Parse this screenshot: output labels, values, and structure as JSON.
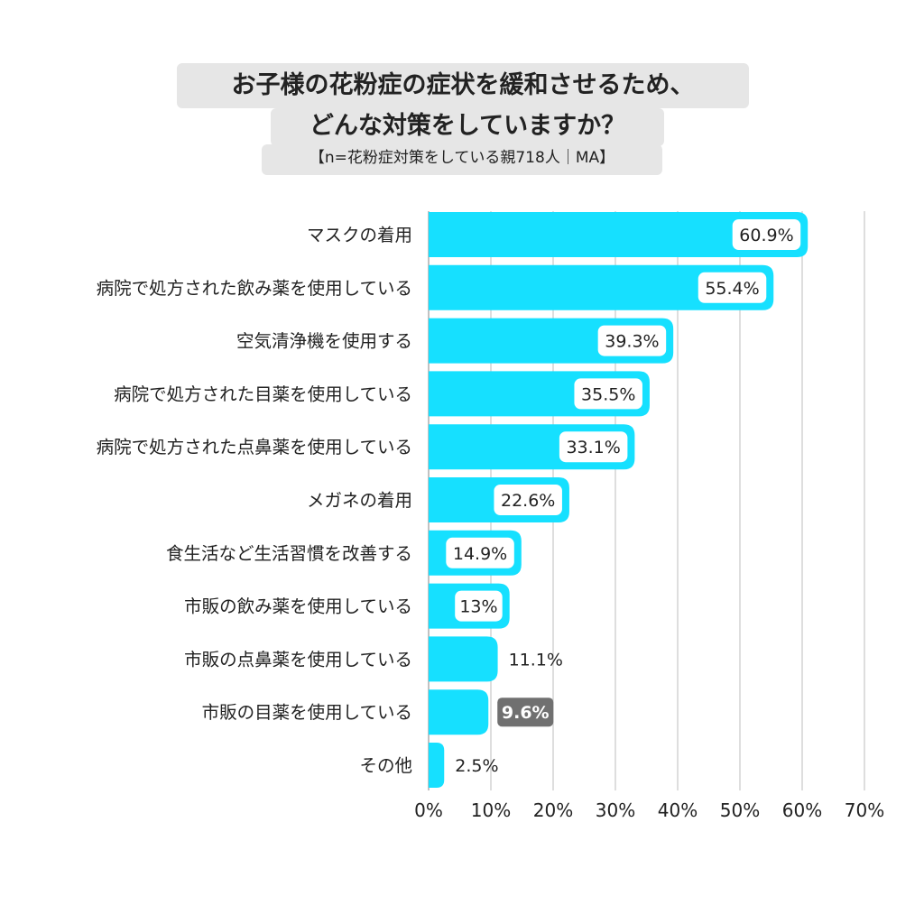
{
  "title": {
    "line1": "お子様の花粉症の症状を緩和させるため、",
    "line2": "どんな対策をしていますか？",
    "subtitle": "【n=花粉症対策をしている親718人｜MA】"
  },
  "chart_data": {
    "type": "bar",
    "orientation": "horizontal",
    "categories": [
      "マスクの着用",
      "病院で処方された飲み薬を使用している",
      "空気清浄機を使用する",
      "病院で処方された目薬を使用している",
      "病院で処方された点鼻薬を使用している",
      "メガネの着用",
      "食生活など生活習慣を改善する",
      "市販の飲み薬を使用している",
      "市販の点鼻薬を使用している",
      "市販の目薬を使用している",
      "その他"
    ],
    "values": [
      60.9,
      55.4,
      39.3,
      35.5,
      33.1,
      22.6,
      14.9,
      13,
      11.1,
      9.6,
      2.5
    ],
    "value_labels": [
      "60.9%",
      "55.4%",
      "39.3%",
      "35.5%",
      "33.1%",
      "22.6%",
      "14.9%",
      "13%",
      "11.1%",
      "9.6%",
      "2.5%"
    ],
    "label_style": [
      "inside-box",
      "inside-box",
      "inside-box",
      "inside-box",
      "inside-box",
      "inside-box",
      "inside-box",
      "inside-box",
      "plain",
      "dark-box",
      "plain"
    ],
    "x_ticks": [
      "0%",
      "10%",
      "20%",
      "30%",
      "40%",
      "50%",
      "60%",
      "70%"
    ],
    "xlim": [
      0,
      70
    ],
    "grid": true,
    "colors": {
      "bar": "#16e0ff",
      "grid": "#c8c8c8",
      "dark_label_bg": "#707070"
    }
  }
}
